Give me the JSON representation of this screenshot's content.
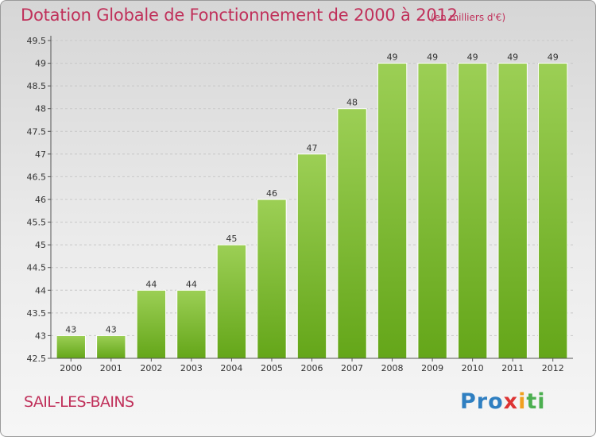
{
  "header": {
    "title": "Dotation Globale de Fonctionnement de 2000 à 2012",
    "subtitle": "(en milliers d'€)"
  },
  "footer": {
    "commune": "SAIL-LES-BAINS",
    "logo_parts": [
      "Pro",
      "x",
      "i",
      "ti"
    ]
  },
  "chart_data": {
    "type": "bar",
    "title": "Dotation Globale de Fonctionnement de 2000 à 2012",
    "unit_note": "(en milliers d'€)",
    "categories": [
      "2000",
      "2001",
      "2002",
      "2003",
      "2004",
      "2005",
      "2006",
      "2007",
      "2008",
      "2009",
      "2010",
      "2011",
      "2012"
    ],
    "values": [
      43,
      43,
      44,
      44,
      45,
      46,
      47,
      48,
      49,
      49,
      49,
      49,
      49
    ],
    "value_labels": [
      "43",
      "43",
      "44",
      "44",
      "45",
      "46",
      "47",
      "48",
      "49",
      "49",
      "49",
      "49",
      "49"
    ],
    "ylim": [
      42.5,
      49.5
    ],
    "yticks": [
      42.5,
      43,
      43.5,
      44,
      44.5,
      45,
      45.5,
      46,
      46.5,
      47,
      47.5,
      48,
      48.5,
      49,
      49.5
    ],
    "ytick_labels": [
      "42.5",
      "43",
      "43.5",
      "44",
      "44.5",
      "45",
      "45.5",
      "46",
      "46.5",
      "47",
      "47.5",
      "48",
      "48.5",
      "49",
      "49.5"
    ],
    "grid": true,
    "colors": {
      "bar_top": "#9ccf55",
      "bar_bottom": "#64a619",
      "bar_edge": "#ffffff",
      "grid": "#c8c8c8",
      "axis": "#555555",
      "text": "#333333"
    }
  }
}
